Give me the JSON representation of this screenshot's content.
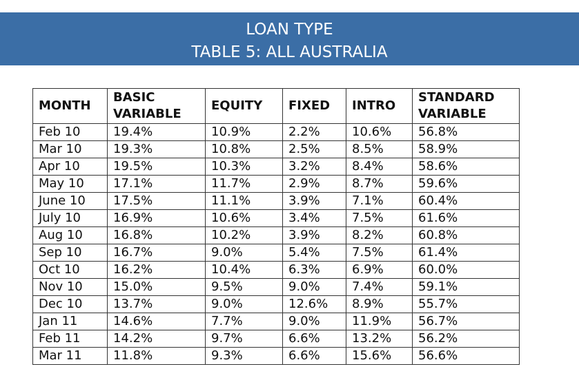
{
  "header": {
    "title": [
      "LOAN TYPE",
      "TABLE 5: ALL AUSTRALIA"
    ]
  },
  "table": {
    "columns": [
      "MONTH",
      "BASIC\nVARIABLE",
      "EQUITY",
      "FIXED",
      "INTRO",
      "STANDARD\nVARIABLE"
    ],
    "rows": [
      [
        "Feb 10",
        "19.4%",
        "10.9%",
        "2.2%",
        "10.6%",
        "56.8%"
      ],
      [
        "Mar 10",
        "19.3%",
        "10.8%",
        "2.5%",
        "8.5%",
        "58.9%"
      ],
      [
        "Apr 10",
        "19.5%",
        "10.3%",
        "3.2%",
        "8.4%",
        "58.6%"
      ],
      [
        "May 10",
        "17.1%",
        "11.7%",
        "2.9%",
        "8.7%",
        "59.6%"
      ],
      [
        "June 10",
        "17.5%",
        "11.1%",
        "3.9%",
        "7.1%",
        "60.4%"
      ],
      [
        "July 10",
        "16.9%",
        "10.6%",
        "3.4%",
        "7.5%",
        "61.6%"
      ],
      [
        "Aug 10",
        "16.8%",
        "10.2%",
        "3.9%",
        "8.2%",
        "60.8%"
      ],
      [
        "Sep 10",
        "16.7%",
        "9.0%",
        "5.4%",
        "7.5%",
        "61.4%"
      ],
      [
        "Oct 10",
        "16.2%",
        "10.4%",
        "6.3%",
        "6.9%",
        "60.0%"
      ],
      [
        "Nov 10",
        "15.0%",
        "9.5%",
        "9.0%",
        "7.4%",
        "59.1%"
      ],
      [
        "Dec 10",
        "13.7%",
        "9.0%",
        "12.6%",
        "8.9%",
        "55.7%"
      ],
      [
        "Jan 11",
        "14.6%",
        "7.7%",
        "9.0%",
        "11.9%",
        "56.7%"
      ],
      [
        "Feb 11",
        "14.2%",
        "9.7%",
        "6.6%",
        "13.2%",
        "56.2%"
      ],
      [
        "Mar 11",
        "11.8%",
        "9.3%",
        "6.6%",
        "15.6%",
        "56.6%"
      ]
    ]
  }
}
